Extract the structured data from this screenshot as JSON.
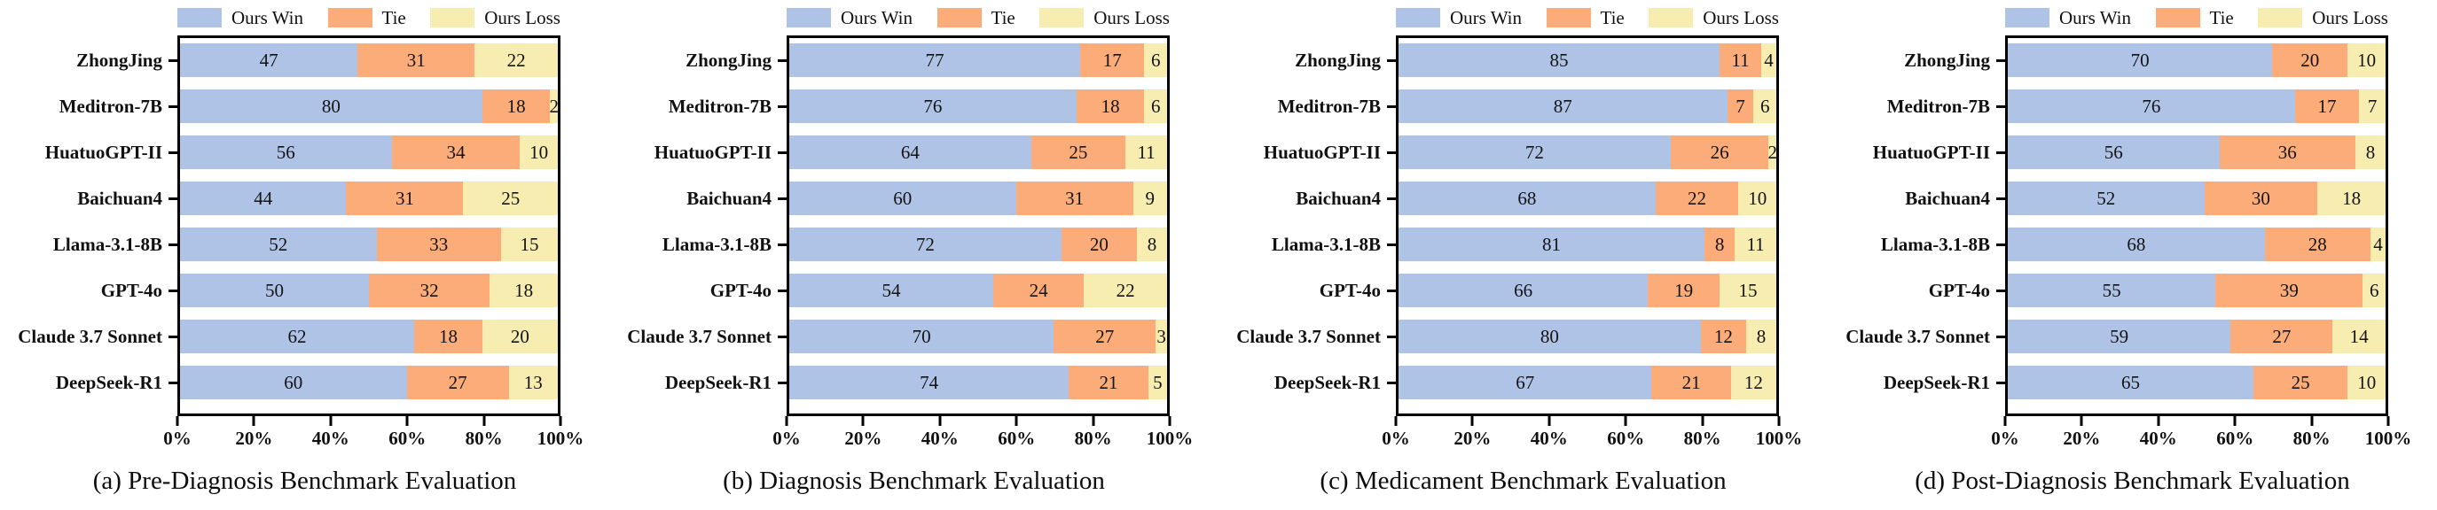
{
  "figure": {
    "legend": [
      "Ours Win",
      "Tie",
      "Ours Loss"
    ],
    "colors": {
      "win": "#afc3e6",
      "tie": "#fbac79",
      "loss": "#f8edb0"
    },
    "x_ticks": [
      "0%",
      "20%",
      "40%",
      "60%",
      "80%",
      "100%"
    ]
  },
  "chart_data": [
    {
      "type": "bar",
      "orientation": "horizontal",
      "stacked": true,
      "title": "(a) Pre-Diagnosis Benchmark Evaluation",
      "xlabel": "",
      "ylabel": "",
      "xlim": [
        0,
        100
      ],
      "x_tick_labels": [
        "0%",
        "20%",
        "40%",
        "60%",
        "80%",
        "100%"
      ],
      "legend_position": "top",
      "value_labels": "inside-center",
      "categories": [
        "ZhongJing",
        "Meditron-7B",
        "HuatuoGPT-II",
        "Baichuan4",
        "Llama-3.1-8B",
        "GPT-4o",
        "Claude 3.7 Sonnet",
        "DeepSeek-R1"
      ],
      "series": [
        {
          "name": "Ours Win",
          "color": "#afc3e6",
          "values": [
            47,
            80,
            56,
            44,
            52,
            50,
            62,
            60
          ]
        },
        {
          "name": "Tie",
          "color": "#fbac79",
          "values": [
            31,
            18,
            34,
            31,
            33,
            32,
            18,
            27
          ]
        },
        {
          "name": "Ours Loss",
          "color": "#f8edb0",
          "values": [
            22,
            2,
            10,
            25,
            15,
            18,
            20,
            13
          ]
        }
      ]
    },
    {
      "type": "bar",
      "orientation": "horizontal",
      "stacked": true,
      "title": "(b) Diagnosis Benchmark Evaluation",
      "xlabel": "",
      "ylabel": "",
      "xlim": [
        0,
        100
      ],
      "x_tick_labels": [
        "0%",
        "20%",
        "40%",
        "60%",
        "80%",
        "100%"
      ],
      "legend_position": "top",
      "value_labels": "inside-center",
      "categories": [
        "ZhongJing",
        "Meditron-7B",
        "HuatuoGPT-II",
        "Baichuan4",
        "Llama-3.1-8B",
        "GPT-4o",
        "Claude 3.7 Sonnet",
        "DeepSeek-R1"
      ],
      "series": [
        {
          "name": "Ours Win",
          "color": "#afc3e6",
          "values": [
            77,
            76,
            64,
            60,
            72,
            54,
            70,
            74
          ]
        },
        {
          "name": "Tie",
          "color": "#fbac79",
          "values": [
            17,
            18,
            25,
            31,
            20,
            24,
            27,
            21
          ]
        },
        {
          "name": "Ours Loss",
          "color": "#f8edb0",
          "values": [
            6,
            6,
            11,
            9,
            8,
            22,
            3,
            5
          ]
        }
      ]
    },
    {
      "type": "bar",
      "orientation": "horizontal",
      "stacked": true,
      "title": "(c) Medicament Benchmark Evaluation",
      "xlabel": "",
      "ylabel": "",
      "xlim": [
        0,
        100
      ],
      "x_tick_labels": [
        "0%",
        "20%",
        "40%",
        "60%",
        "80%",
        "100%"
      ],
      "legend_position": "top",
      "value_labels": "inside-center",
      "categories": [
        "ZhongJing",
        "Meditron-7B",
        "HuatuoGPT-II",
        "Baichuan4",
        "Llama-3.1-8B",
        "GPT-4o",
        "Claude 3.7 Sonnet",
        "DeepSeek-R1"
      ],
      "series": [
        {
          "name": "Ours Win",
          "color": "#afc3e6",
          "values": [
            85,
            87,
            72,
            68,
            81,
            66,
            80,
            67
          ]
        },
        {
          "name": "Tie",
          "color": "#fbac79",
          "values": [
            11,
            7,
            26,
            22,
            8,
            19,
            12,
            21
          ]
        },
        {
          "name": "Ours Loss",
          "color": "#f8edb0",
          "values": [
            4,
            6,
            2,
            10,
            11,
            15,
            8,
            12
          ]
        }
      ]
    },
    {
      "type": "bar",
      "orientation": "horizontal",
      "stacked": true,
      "title": "(d) Post-Diagnosis Benchmark Evaluation",
      "xlabel": "",
      "ylabel": "",
      "xlim": [
        0,
        100
      ],
      "x_tick_labels": [
        "0%",
        "20%",
        "40%",
        "60%",
        "80%",
        "100%"
      ],
      "legend_position": "top",
      "value_labels": "inside-center",
      "categories": [
        "ZhongJing",
        "Meditron-7B",
        "HuatuoGPT-II",
        "Baichuan4",
        "Llama-3.1-8B",
        "GPT-4o",
        "Claude 3.7 Sonnet",
        "DeepSeek-R1"
      ],
      "series": [
        {
          "name": "Ours Win",
          "color": "#afc3e6",
          "values": [
            70,
            76,
            56,
            52,
            68,
            55,
            59,
            65
          ]
        },
        {
          "name": "Tie",
          "color": "#fbac79",
          "values": [
            20,
            17,
            36,
            30,
            28,
            39,
            27,
            25
          ]
        },
        {
          "name": "Ours Loss",
          "color": "#f8edb0",
          "values": [
            10,
            7,
            8,
            18,
            4,
            6,
            14,
            10
          ]
        }
      ]
    }
  ]
}
